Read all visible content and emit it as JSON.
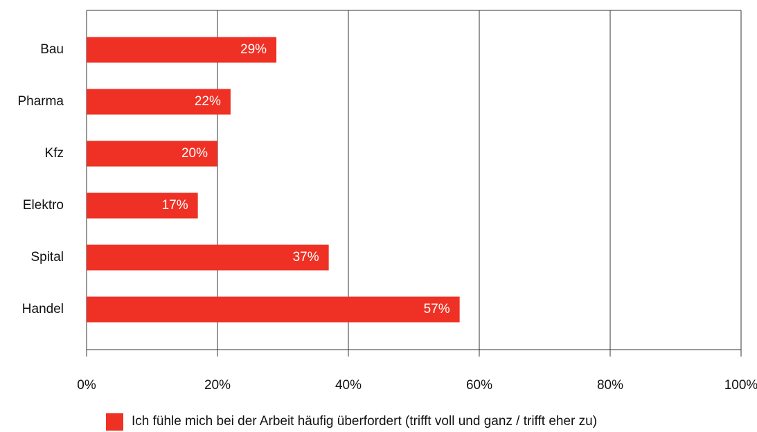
{
  "chart_data": {
    "type": "hbar",
    "categories": [
      "Bau",
      "Pharma",
      "Kfz",
      "Elektro",
      "Spital",
      "Handel"
    ],
    "series": [
      {
        "name": "Ich fühle mich bei der Arbeit häufig überfordert (trifft voll und ganz / trifft eher zu)",
        "color": "#ee3124",
        "values": [
          29,
          22,
          20,
          17,
          37,
          57
        ],
        "value_labels": [
          "29%",
          "22%",
          "20%",
          "17%",
          "37%",
          "57%"
        ]
      }
    ],
    "xlim": [
      0,
      100
    ],
    "xticks": [
      {
        "value": 0,
        "label": "0%"
      },
      {
        "value": 20,
        "label": "20%"
      },
      {
        "value": 40,
        "label": "40%"
      },
      {
        "value": 60,
        "label": "60%"
      },
      {
        "value": 80,
        "label": "80%"
      },
      {
        "value": 100,
        "label": "100%"
      }
    ],
    "grid": true
  }
}
